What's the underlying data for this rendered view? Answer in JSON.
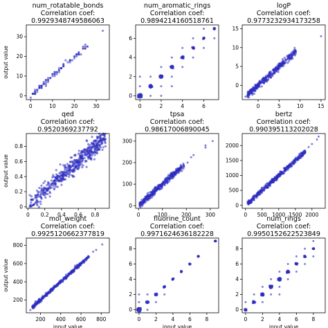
{
  "figure": {
    "point_color": "#2b2bc0",
    "axis_color": "#000000",
    "xlabel": "input value",
    "ylabel": "output value"
  },
  "chart_data": [
    {
      "type": "scatter",
      "title": "num_rotatable_bonds",
      "subtitle": "Correlation coef:",
      "corr": "0.9929348749586063",
      "xlim": [
        -2,
        36
      ],
      "ylim": [
        -2,
        36
      ],
      "xticks": [
        0,
        10,
        20,
        30
      ],
      "yticks": [
        0,
        10,
        20,
        30
      ],
      "trend": {
        "kind": "linear",
        "slope": 1.0,
        "spread": 0.6,
        "n": 90,
        "xmin": 0,
        "xmax": 26,
        "discrete": true
      },
      "extra_points": [
        [
          33,
          33
        ],
        [
          24,
          25
        ],
        [
          22,
          22
        ],
        [
          26,
          25
        ],
        [
          20,
          19
        ]
      ]
    },
    {
      "type": "scatter",
      "title": "num_aromatic_rings",
      "subtitle": "Correlation coef:",
      "corr": "0.9894214160518761",
      "xlim": [
        -0.4,
        7.4
      ],
      "ylim": [
        -0.4,
        7.4
      ],
      "xticks": [
        0,
        2,
        4,
        6
      ],
      "yticks": [
        0,
        2,
        4,
        6
      ],
      "clusters": [
        [
          0,
          0,
          4
        ],
        [
          1,
          1,
          3.2
        ],
        [
          2,
          2,
          3.2
        ],
        [
          3,
          3,
          3.0
        ],
        [
          4,
          4,
          2.6
        ],
        [
          5,
          5,
          2.2
        ],
        [
          6,
          6,
          1.8
        ],
        [
          7,
          7,
          1.5
        ]
      ],
      "extra_points": [
        [
          0,
          1
        ],
        [
          1,
          0
        ],
        [
          1,
          2
        ],
        [
          2,
          1
        ],
        [
          2,
          3
        ],
        [
          3,
          2
        ],
        [
          3,
          4
        ],
        [
          4,
          3
        ],
        [
          4,
          5
        ],
        [
          5,
          4
        ],
        [
          5,
          6
        ],
        [
          6,
          5
        ],
        [
          2,
          0
        ],
        [
          0,
          2
        ],
        [
          3,
          1
        ],
        [
          6,
          7
        ],
        [
          7,
          6
        ]
      ]
    },
    {
      "type": "scatter",
      "title": "logP",
      "subtitle": "Correlation coef:",
      "corr": "0.9773232934173258",
      "xlim": [
        -3.8,
        16
      ],
      "ylim": [
        -3.8,
        16
      ],
      "xticks": [
        0,
        5,
        10,
        15
      ],
      "yticks": [
        0,
        5,
        10,
        15
      ],
      "trend": {
        "kind": "linear",
        "slope": 1.0,
        "spread": 0.45,
        "n": 320,
        "xmin": -2.5,
        "xmax": 9
      },
      "extra_points": [
        [
          15,
          13
        ],
        [
          9,
          9
        ],
        [
          -3,
          -3
        ]
      ]
    },
    {
      "type": "scatter",
      "title": "qed",
      "subtitle": "Correlation coef:",
      "corr": "0.9520369237792",
      "xlim": [
        -0.02,
        0.97
      ],
      "ylim": [
        -0.02,
        0.97
      ],
      "xticks": [
        0,
        0.2,
        0.4,
        0.6,
        0.8
      ],
      "yticks": [
        0,
        0.2,
        0.4,
        0.6,
        0.8
      ],
      "trend": {
        "kind": "linear",
        "slope": 1.0,
        "spread": 0.06,
        "n": 520,
        "xmin": 0.02,
        "xmax": 0.93,
        "skew": true
      }
    },
    {
      "type": "scatter",
      "title": "tpsa",
      "subtitle": "Correlation coef:",
      "corr": "0.98617006890045",
      "xlim": [
        -12,
        335
      ],
      "ylim": [
        -12,
        335
      ],
      "xticks": [
        0,
        100,
        200,
        300
      ],
      "yticks": [
        0,
        100,
        200,
        300
      ],
      "trend": {
        "kind": "linear",
        "slope": 1.0,
        "spread": 8,
        "n": 320,
        "xmin": 5,
        "xmax": 190
      },
      "extra_points": [
        [
          280,
          280
        ],
        [
          280,
          270
        ],
        [
          310,
          300
        ],
        [
          230,
          235
        ],
        [
          220,
          225
        ],
        [
          205,
          200
        ]
      ]
    },
    {
      "type": "scatter",
      "title": "bertz",
      "subtitle": "Correlation coef:",
      "corr": "0.990395113202028",
      "xlim": [
        -100,
        2400
      ],
      "ylim": [
        -100,
        2400
      ],
      "xticks": [
        0,
        500,
        1000,
        1500,
        2000
      ],
      "yticks": [
        0,
        500,
        1000,
        1500,
        2000
      ],
      "trend": {
        "kind": "linear",
        "slope": 1.0,
        "spread": 40,
        "n": 380,
        "xmin": 60,
        "xmax": 1800
      },
      "extra_points": [
        [
          2200,
          2300
        ],
        [
          2150,
          2200
        ],
        [
          1900,
          1950
        ],
        [
          2000,
          2050
        ]
      ]
    },
    {
      "type": "scatter",
      "title": "mol_weight",
      "subtitle": "Correlation coef:",
      "corr": "0.9925120662377819",
      "xlim": [
        60,
        880
      ],
      "ylim": [
        60,
        880
      ],
      "xticks": [
        200,
        400,
        600,
        800
      ],
      "yticks": [
        200,
        400,
        600,
        800
      ],
      "trend": {
        "kind": "linear",
        "slope": 1.0,
        "spread": 9,
        "n": 340,
        "xmin": 120,
        "xmax": 680
      },
      "extra_points": [
        [
          810,
          810
        ],
        [
          750,
          750
        ],
        [
          720,
          730
        ],
        [
          100,
          90
        ]
      ]
    },
    {
      "type": "scatter",
      "title": "fluorine_count",
      "subtitle": "Correlation coef:",
      "corr": "0.9971624636182228",
      "xlim": [
        -0.4,
        9.4
      ],
      "ylim": [
        -0.4,
        9.4
      ],
      "xticks": [
        0,
        2,
        4,
        6,
        8
      ],
      "yticks": [
        0,
        2,
        4,
        6,
        8
      ],
      "clusters": [
        [
          0,
          0,
          4
        ],
        [
          1,
          1,
          2.6
        ],
        [
          2,
          2,
          2.3
        ],
        [
          3,
          3,
          2.0
        ],
        [
          4,
          4,
          1.6
        ],
        [
          5,
          5,
          1.3
        ],
        [
          6,
          6,
          1.2
        ],
        [
          7,
          7,
          1.1
        ],
        [
          9,
          9,
          1.1
        ]
      ],
      "extra_points": [
        [
          0,
          1
        ],
        [
          1,
          0
        ],
        [
          1,
          2
        ],
        [
          2,
          1
        ],
        [
          0,
          2
        ],
        [
          3,
          2
        ]
      ]
    },
    {
      "type": "scatter",
      "title": "num_rings",
      "subtitle": "Correlation coef:",
      "corr": "0.9950152622523849",
      "xlim": [
        -0.4,
        9.4
      ],
      "ylim": [
        -0.4,
        9.4
      ],
      "xticks": [
        0,
        2,
        4,
        6,
        8
      ],
      "yticks": [
        0,
        2,
        4,
        6,
        8
      ],
      "clusters": [
        [
          0,
          0,
          2.2
        ],
        [
          1,
          1,
          2.4
        ],
        [
          2,
          2,
          3.0
        ],
        [
          3,
          3,
          3.2
        ],
        [
          4,
          4,
          3.2
        ],
        [
          5,
          5,
          2.8
        ],
        [
          6,
          6,
          2.2
        ],
        [
          7,
          7,
          1.8
        ],
        [
          8,
          8,
          1.4
        ]
      ],
      "extra_points": [
        [
          0,
          1
        ],
        [
          2,
          1
        ],
        [
          2,
          3
        ],
        [
          3,
          2
        ],
        [
          3,
          4
        ],
        [
          4,
          3
        ],
        [
          4,
          5
        ],
        [
          5,
          4
        ],
        [
          5,
          6
        ],
        [
          6,
          5
        ],
        [
          6,
          7
        ],
        [
          7,
          6
        ],
        [
          7,
          8
        ],
        [
          8,
          7
        ],
        [
          8,
          9
        ],
        [
          4,
          2
        ],
        [
          1,
          2
        ]
      ]
    }
  ]
}
